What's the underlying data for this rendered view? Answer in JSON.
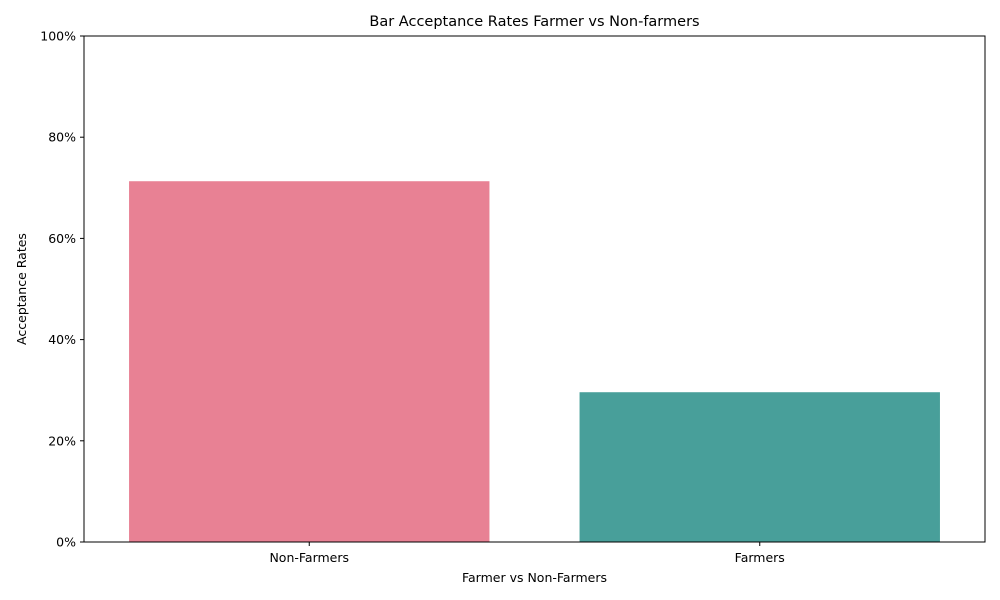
{
  "chart_data": {
    "type": "bar",
    "title": "Bar Acceptance Rates Farmer vs Non-farmers",
    "xlabel": "Farmer vs Non-Farmers",
    "ylabel": "Acceptance Rates",
    "categories": [
      "Non-Farmers",
      "Farmers"
    ],
    "values": [
      0.713,
      0.296
    ],
    "bar_colors": [
      "#e88194",
      "#489f9a"
    ],
    "ylim": [
      0,
      1
    ],
    "yticks": [
      0,
      0.2,
      0.4,
      0.6,
      0.8,
      1.0
    ],
    "ytick_labels": [
      "0%",
      "20%",
      "40%",
      "60%",
      "80%",
      "100%"
    ],
    "grid": false,
    "legend": "none"
  }
}
